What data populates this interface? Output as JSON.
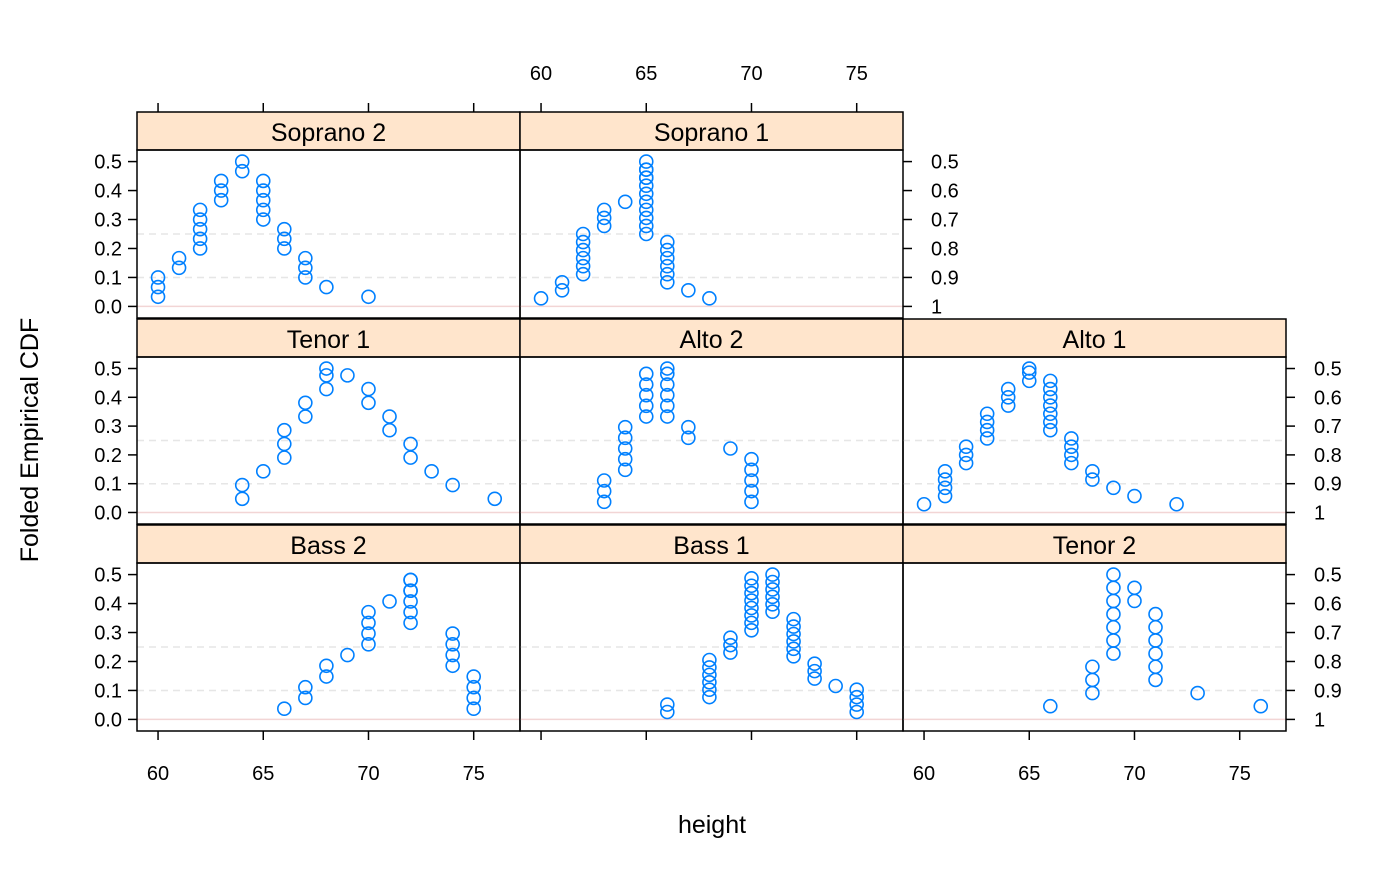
{
  "chart_data": {
    "type": "scatter",
    "xlabel": "height",
    "ylabel": "Folded Empirical CDF",
    "xlim": [
      59,
      77.2
    ],
    "ylim": [
      -0.04,
      0.54
    ],
    "x_ticks": [
      "60",
      "65",
      "70",
      "75"
    ],
    "y_ticks_left": [
      "0.0",
      "0.1",
      "0.2",
      "0.3",
      "0.4",
      "0.5"
    ],
    "y_ticks_right": [
      "1",
      "0.9",
      "0.8",
      "0.7",
      "0.6",
      "0.5"
    ],
    "reference_lines": [
      0.1,
      0.25
    ],
    "grid": false,
    "colors": {
      "points": "#0080ff",
      "strip_fill": "#ffe5cc",
      "reference_line": "#e6e6e6",
      "baseline": "#f2d5d5"
    },
    "panels": [
      {
        "name": "Soprano 2",
        "points": [
          [
            60,
            0.0333
          ],
          [
            60,
            0.0667
          ],
          [
            60,
            0.1
          ],
          [
            61,
            0.1333
          ],
          [
            61,
            0.1667
          ],
          [
            62,
            0.2
          ],
          [
            62,
            0.2333
          ],
          [
            62,
            0.2667
          ],
          [
            62,
            0.3
          ],
          [
            62,
            0.3333
          ],
          [
            63,
            0.3667
          ],
          [
            63,
            0.4
          ],
          [
            63,
            0.4333
          ],
          [
            64,
            0.4667
          ],
          [
            64,
            0.5
          ],
          [
            65,
            0.4333
          ],
          [
            65,
            0.4
          ],
          [
            65,
            0.3667
          ],
          [
            65,
            0.3333
          ],
          [
            65,
            0.3
          ],
          [
            66,
            0.2667
          ],
          [
            66,
            0.2333
          ],
          [
            66,
            0.2
          ],
          [
            67,
            0.1667
          ],
          [
            67,
            0.1333
          ],
          [
            67,
            0.1
          ],
          [
            68,
            0.0667
          ],
          [
            70,
            0.0333
          ]
        ]
      },
      {
        "name": "Soprano 1",
        "points": [
          [
            60,
            0.0278
          ],
          [
            61,
            0.0556
          ],
          [
            61,
            0.0833
          ],
          [
            62,
            0.1111
          ],
          [
            62,
            0.1389
          ],
          [
            62,
            0.1667
          ],
          [
            62,
            0.1944
          ],
          [
            62,
            0.2222
          ],
          [
            62,
            0.25
          ],
          [
            63,
            0.2778
          ],
          [
            63,
            0.3056
          ],
          [
            63,
            0.3333
          ],
          [
            64,
            0.3611
          ],
          [
            65,
            0.4444
          ],
          [
            65,
            0.4722
          ],
          [
            65,
            0.5
          ],
          [
            65,
            0.25
          ],
          [
            65,
            0.2778
          ],
          [
            65,
            0.3056
          ],
          [
            65,
            0.3333
          ],
          [
            65,
            0.3611
          ],
          [
            65,
            0.3889
          ],
          [
            65,
            0.4167
          ],
          [
            65,
            0.4444
          ],
          [
            65,
            0.4722
          ],
          [
            66,
            0.2222
          ],
          [
            66,
            0.1944
          ],
          [
            66,
            0.1667
          ],
          [
            66,
            0.1389
          ],
          [
            66,
            0.1111
          ],
          [
            66,
            0.0833
          ],
          [
            67,
            0.0556
          ],
          [
            68,
            0.0278
          ]
        ]
      },
      {
        "name": "Tenor 1",
        "points": [
          [
            64,
            0.0476
          ],
          [
            64,
            0.0952
          ],
          [
            65,
            0.1429
          ],
          [
            66,
            0.1905
          ],
          [
            66,
            0.2381
          ],
          [
            66,
            0.2857
          ],
          [
            67,
            0.3333
          ],
          [
            67,
            0.381
          ],
          [
            68,
            0.4286
          ],
          [
            68,
            0.4762
          ],
          [
            68,
            0.5
          ],
          [
            69,
            0.4762
          ],
          [
            70,
            0.4286
          ],
          [
            70,
            0.381
          ],
          [
            71,
            0.3333
          ],
          [
            71,
            0.2857
          ],
          [
            72,
            0.2381
          ],
          [
            72,
            0.1905
          ],
          [
            73,
            0.1429
          ],
          [
            74,
            0.0952
          ],
          [
            76,
            0.0476
          ]
        ]
      },
      {
        "name": "Alto 2",
        "points": [
          [
            63,
            0.037
          ],
          [
            63,
            0.0741
          ],
          [
            63,
            0.1111
          ],
          [
            64,
            0.1481
          ],
          [
            64,
            0.1852
          ],
          [
            64,
            0.2222
          ],
          [
            64,
            0.2593
          ],
          [
            64,
            0.2963
          ],
          [
            65,
            0.3333
          ],
          [
            65,
            0.3704
          ],
          [
            65,
            0.4074
          ],
          [
            65,
            0.4444
          ],
          [
            65,
            0.4815
          ],
          [
            66,
            0.5
          ],
          [
            66,
            0.4815
          ],
          [
            66,
            0.4444
          ],
          [
            66,
            0.4074
          ],
          [
            66,
            0.3704
          ],
          [
            66,
            0.3333
          ],
          [
            67,
            0.2963
          ],
          [
            67,
            0.2593
          ],
          [
            69,
            0.2222
          ],
          [
            70,
            0.1852
          ],
          [
            70,
            0.1481
          ],
          [
            70,
            0.1111
          ],
          [
            70,
            0.0741
          ],
          [
            70,
            0.037
          ]
        ]
      },
      {
        "name": "Alto 1",
        "points": [
          [
            60,
            0.0286
          ],
          [
            61,
            0.0571
          ],
          [
            61,
            0.0857
          ],
          [
            61,
            0.1143
          ],
          [
            61,
            0.1429
          ],
          [
            62,
            0.1714
          ],
          [
            62,
            0.2
          ],
          [
            62,
            0.2286
          ],
          [
            63,
            0.2571
          ],
          [
            63,
            0.2857
          ],
          [
            63,
            0.3143
          ],
          [
            63,
            0.3429
          ],
          [
            64,
            0.3714
          ],
          [
            64,
            0.4
          ],
          [
            64,
            0.4286
          ],
          [
            65,
            0.4571
          ],
          [
            65,
            0.4857
          ],
          [
            65,
            0.5
          ],
          [
            66,
            0.4571
          ],
          [
            66,
            0.4286
          ],
          [
            66,
            0.4
          ],
          [
            66,
            0.3714
          ],
          [
            66,
            0.3429
          ],
          [
            66,
            0.3143
          ],
          [
            66,
            0.2857
          ],
          [
            67,
            0.2571
          ],
          [
            67,
            0.2286
          ],
          [
            67,
            0.2
          ],
          [
            67,
            0.1714
          ],
          [
            68,
            0.1429
          ],
          [
            68,
            0.1143
          ],
          [
            69,
            0.0857
          ],
          [
            70,
            0.0571
          ],
          [
            72,
            0.0286
          ]
        ]
      },
      {
        "name": "Bass 2",
        "points": [
          [
            66,
            0.037
          ],
          [
            67,
            0.0741
          ],
          [
            67,
            0.1111
          ],
          [
            68,
            0.1481
          ],
          [
            68,
            0.1852
          ],
          [
            69,
            0.2222
          ],
          [
            70,
            0.2593
          ],
          [
            70,
            0.2963
          ],
          [
            70,
            0.3333
          ],
          [
            70,
            0.3704
          ],
          [
            71,
            0.4074
          ],
          [
            72,
            0.4444
          ],
          [
            72,
            0.4815
          ],
          [
            72,
            0.4815
          ],
          [
            72,
            0.4444
          ],
          [
            72,
            0.4074
          ],
          [
            72,
            0.3704
          ],
          [
            72,
            0.3333
          ],
          [
            74,
            0.2963
          ],
          [
            74,
            0.2593
          ],
          [
            74,
            0.2222
          ],
          [
            74,
            0.1852
          ],
          [
            75,
            0.1481
          ],
          [
            75,
            0.1111
          ],
          [
            75,
            0.0741
          ],
          [
            75,
            0.037
          ]
        ]
      },
      {
        "name": "Bass 1",
        "points": [
          [
            66,
            0.0256
          ],
          [
            66,
            0.0513
          ],
          [
            68,
            0.0769
          ],
          [
            68,
            0.1026
          ],
          [
            68,
            0.1282
          ],
          [
            68,
            0.1538
          ],
          [
            68,
            0.1795
          ],
          [
            68,
            0.2051
          ],
          [
            69,
            0.2308
          ],
          [
            69,
            0.2564
          ],
          [
            69,
            0.2821
          ],
          [
            70,
            0.3077
          ],
          [
            70,
            0.3333
          ],
          [
            70,
            0.359
          ],
          [
            70,
            0.3846
          ],
          [
            70,
            0.4103
          ],
          [
            70,
            0.4359
          ],
          [
            70,
            0.4615
          ],
          [
            70,
            0.4872
          ],
          [
            71,
            0.5
          ],
          [
            71,
            0.4744
          ],
          [
            71,
            0.4487
          ],
          [
            71,
            0.4231
          ],
          [
            71,
            0.3974
          ],
          [
            71,
            0.3718
          ],
          [
            72,
            0.3462
          ],
          [
            72,
            0.3205
          ],
          [
            72,
            0.2949
          ],
          [
            72,
            0.2692
          ],
          [
            72,
            0.2436
          ],
          [
            72,
            0.2179
          ],
          [
            73,
            0.1923
          ],
          [
            73,
            0.1667
          ],
          [
            73,
            0.141
          ],
          [
            74,
            0.1154
          ],
          [
            75,
            0.1026
          ],
          [
            75,
            0.0769
          ],
          [
            75,
            0.0513
          ],
          [
            75,
            0.0256
          ]
        ]
      },
      {
        "name": "Tenor 2",
        "points": [
          [
            66,
            0.0455
          ],
          [
            68,
            0.0909
          ],
          [
            68,
            0.1364
          ],
          [
            68,
            0.1818
          ],
          [
            69,
            0.2273
          ],
          [
            69,
            0.2727
          ],
          [
            69,
            0.3182
          ],
          [
            69,
            0.3636
          ],
          [
            69,
            0.4091
          ],
          [
            69,
            0.4545
          ],
          [
            69,
            0.5
          ],
          [
            70,
            0.4545
          ],
          [
            70,
            0.4091
          ],
          [
            71,
            0.3636
          ],
          [
            71,
            0.3182
          ],
          [
            71,
            0.2727
          ],
          [
            71,
            0.2273
          ],
          [
            71,
            0.1818
          ],
          [
            71,
            0.1364
          ],
          [
            73,
            0.0909
          ],
          [
            76,
            0.0455
          ]
        ]
      }
    ]
  }
}
